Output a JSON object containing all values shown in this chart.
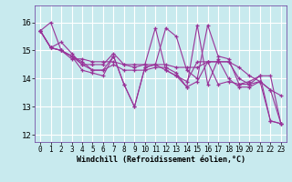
{
  "xlabel": "Windchill (Refroidissement éolien,°C)",
  "bg_color": "#c8eaee",
  "line_color": "#993399",
  "grid_color": "#ffffff",
  "xlim": [
    -0.5,
    23.5
  ],
  "ylim": [
    11.75,
    16.6
  ],
  "yticks": [
    12,
    13,
    14,
    15,
    16
  ],
  "xticks": [
    0,
    1,
    2,
    3,
    4,
    5,
    6,
    7,
    8,
    9,
    10,
    11,
    12,
    13,
    14,
    15,
    16,
    17,
    18,
    19,
    20,
    21,
    22,
    23
  ],
  "series": [
    [
      15.7,
      16.0,
      15.0,
      14.8,
      14.3,
      14.2,
      14.1,
      14.8,
      13.8,
      13.0,
      14.4,
      14.5,
      15.8,
      15.5,
      14.3,
      14.0,
      15.9,
      14.8,
      14.7,
      13.8,
      13.9,
      14.1,
      12.5,
      12.4
    ],
    [
      15.7,
      15.1,
      15.0,
      14.7,
      14.7,
      14.6,
      14.6,
      14.6,
      14.5,
      14.5,
      14.5,
      14.5,
      14.5,
      14.4,
      14.4,
      14.4,
      14.6,
      14.6,
      14.6,
      14.4,
      14.1,
      13.9,
      13.6,
      13.4
    ],
    [
      15.7,
      15.1,
      15.3,
      14.9,
      14.5,
      14.5,
      14.5,
      14.9,
      14.5,
      14.4,
      14.5,
      15.8,
      14.3,
      14.1,
      13.9,
      14.6,
      14.6,
      14.6,
      14.6,
      14.0,
      13.8,
      14.1,
      14.1,
      12.4
    ],
    [
      15.7,
      15.1,
      15.0,
      14.8,
      14.6,
      14.3,
      14.3,
      14.5,
      14.3,
      14.3,
      14.3,
      14.4,
      14.4,
      14.2,
      13.7,
      13.9,
      14.6,
      13.8,
      13.9,
      13.8,
      13.8,
      13.9,
      13.6,
      12.4
    ],
    [
      15.7,
      15.1,
      15.0,
      14.8,
      14.5,
      14.3,
      14.3,
      14.8,
      13.8,
      13.0,
      14.4,
      14.5,
      14.3,
      14.1,
      13.7,
      15.9,
      13.8,
      14.7,
      14.0,
      13.7,
      13.7,
      13.9,
      12.5,
      12.4
    ]
  ]
}
